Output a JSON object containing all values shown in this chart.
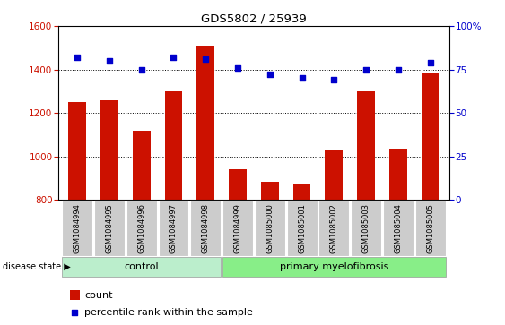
{
  "title": "GDS5802 / 25939",
  "samples": [
    "GSM1084994",
    "GSM1084995",
    "GSM1084996",
    "GSM1084997",
    "GSM1084998",
    "GSM1084999",
    "GSM1085000",
    "GSM1085001",
    "GSM1085002",
    "GSM1085003",
    "GSM1085004",
    "GSM1085005"
  ],
  "counts": [
    1250,
    1260,
    1120,
    1300,
    1510,
    940,
    885,
    875,
    1030,
    1300,
    1035,
    1385
  ],
  "percentiles": [
    82,
    80,
    75,
    82,
    81,
    76,
    72,
    70,
    69,
    75,
    75,
    79
  ],
  "ylim_left": [
    800,
    1600
  ],
  "ylim_right": [
    0,
    100
  ],
  "yticks_left": [
    800,
    1000,
    1200,
    1400,
    1600
  ],
  "yticks_right": [
    0,
    25,
    50,
    75,
    100
  ],
  "bar_color": "#cc1100",
  "dot_color": "#0000cc",
  "tick_bg_color": "#cccccc",
  "control_label": "control",
  "myelofibrosis_label": "primary myelofibrosis",
  "disease_state_label": "disease state",
  "legend_count_label": "count",
  "legend_percentile_label": "percentile rank within the sample",
  "n_control": 5,
  "n_myelofibrosis": 7,
  "control_fill": "#bbeecc",
  "myelo_fill": "#88ee88"
}
